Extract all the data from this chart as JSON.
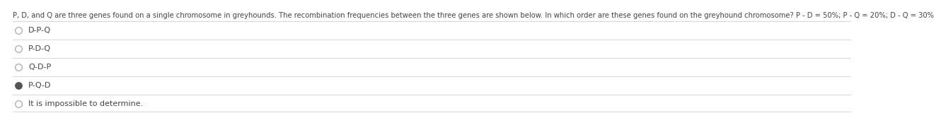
{
  "title": "P, D, and Q are three genes found on a single chromosome in greyhounds. The recombination frequencies between the three genes are shown below. In which order are these genes found on the greyhound chromosome? P - D = 50%; P - Q = 20%; D - Q = 30%",
  "options": [
    {
      "label": "D-P-Q",
      "selected": false
    },
    {
      "label": "P-D-Q",
      "selected": false
    },
    {
      "label": "Q-D-P",
      "selected": false
    },
    {
      "label": "P-Q-D",
      "selected": true
    },
    {
      "label": "It is impossible to determine.",
      "selected": false
    }
  ],
  "bg_color": "#ffffff",
  "title_color": "#444444",
  "option_color": "#444444",
  "line_color": "#d0d0d0",
  "circle_stroke_color": "#aaaaaa",
  "selected_fill_color": "#555555",
  "title_fontsize": 7.2,
  "option_fontsize": 8.0,
  "fig_width": 12.0,
  "fig_height": 1.57
}
